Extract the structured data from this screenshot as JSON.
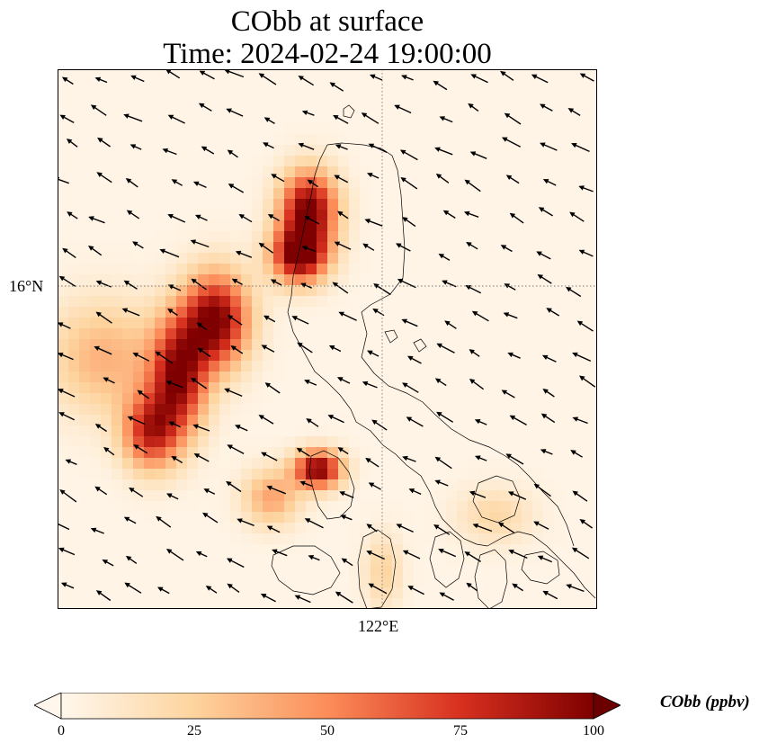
{
  "title": {
    "line1": "CObb at surface",
    "line2": "Time: 2024-02-24 19:00:00"
  },
  "map": {
    "lat_label": "16°N",
    "lon_label": "122°E",
    "extent": {
      "lon_min": 118.5,
      "lon_max": 124.3,
      "lat_min": 12.5,
      "lat_max": 18.3
    },
    "gridline_lat": 16,
    "gridline_lon": 122
  },
  "colorbar": {
    "label": "CObb (ppbv)",
    "ticks": [
      "0",
      "25",
      "50",
      "75",
      "100"
    ],
    "min": 0,
    "max": 100,
    "colormap": "OrRd",
    "colors": [
      "#fff7ec",
      "#fdd49e",
      "#fc8d59",
      "#d7301f",
      "#7f0000"
    ],
    "extend": "both"
  },
  "plumes": [
    {
      "lon": 120.2,
      "lat": 15.6,
      "value": 100,
      "spread_lon": 0.35,
      "spread_lat": 0.5
    },
    {
      "lon": 119.8,
      "lat": 15.0,
      "value": 90,
      "spread_lon": 0.3,
      "spread_lat": 0.6
    },
    {
      "lon": 119.5,
      "lat": 14.4,
      "value": 75,
      "spread_lon": 0.3,
      "spread_lat": 0.4
    },
    {
      "lon": 119.0,
      "lat": 15.2,
      "value": 35,
      "spread_lon": 0.6,
      "spread_lat": 0.6
    },
    {
      "lon": 121.2,
      "lat": 16.8,
      "value": 100,
      "spread_lon": 0.3,
      "spread_lat": 0.4
    },
    {
      "lon": 121.1,
      "lat": 16.3,
      "value": 100,
      "spread_lon": 0.3,
      "spread_lat": 0.3
    },
    {
      "lon": 121.3,
      "lat": 14.0,
      "value": 100,
      "spread_lon": 0.25,
      "spread_lat": 0.2
    },
    {
      "lon": 120.8,
      "lat": 13.7,
      "value": 40,
      "spread_lon": 0.3,
      "spread_lat": 0.3
    },
    {
      "lon": 123.2,
      "lat": 13.5,
      "value": 20,
      "spread_lon": 0.4,
      "spread_lat": 0.3
    },
    {
      "lon": 122.0,
      "lat": 12.9,
      "value": 22,
      "spread_lon": 0.2,
      "spread_lat": 0.4
    }
  ],
  "wind": {
    "u_mean": -3.0,
    "v_mean": -1.6
  }
}
